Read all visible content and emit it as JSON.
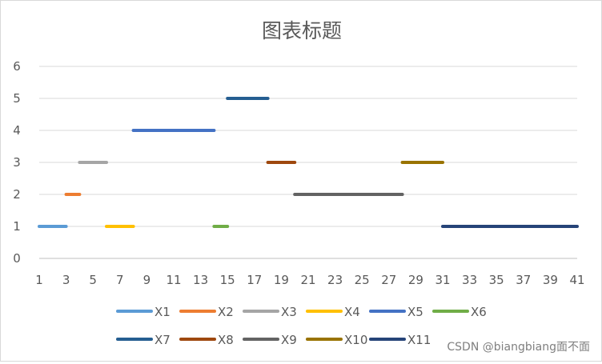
{
  "chart_data": {
    "type": "line",
    "title": "图表标题",
    "xlabel": "",
    "ylabel": "",
    "x_tick_labels": [
      "1",
      "3",
      "5",
      "7",
      "9",
      "11",
      "13",
      "15",
      "17",
      "19",
      "21",
      "23",
      "25",
      "27",
      "29",
      "31",
      "33",
      "35",
      "37",
      "39",
      "41"
    ],
    "y_tick_labels": [
      "0",
      "1",
      "2",
      "3",
      "4",
      "5",
      "6"
    ],
    "xlim": [
      1,
      41
    ],
    "ylim": [
      0,
      6
    ],
    "grid": "horizontal",
    "legend_position": "bottom",
    "series": [
      {
        "name": "X1",
        "color": "#5b9bd5",
        "x": [
          1,
          3
        ],
        "y": [
          1,
          1
        ]
      },
      {
        "name": "X2",
        "color": "#ed7d31",
        "x": [
          3,
          4
        ],
        "y": [
          2,
          2
        ]
      },
      {
        "name": "X3",
        "color": "#a5a5a5",
        "x": [
          4,
          6
        ],
        "y": [
          3,
          3
        ]
      },
      {
        "name": "X4",
        "color": "#ffc000",
        "x": [
          6,
          8
        ],
        "y": [
          1,
          1
        ]
      },
      {
        "name": "X5",
        "color": "#4472c4",
        "x": [
          8,
          14
        ],
        "y": [
          4,
          4
        ]
      },
      {
        "name": "X6",
        "color": "#70ad47",
        "x": [
          14,
          15
        ],
        "y": [
          1,
          1
        ]
      },
      {
        "name": "X7",
        "color": "#255e91",
        "x": [
          15,
          18
        ],
        "y": [
          5,
          5
        ]
      },
      {
        "name": "X8",
        "color": "#9e480e",
        "x": [
          18,
          20
        ],
        "y": [
          3,
          3
        ]
      },
      {
        "name": "X9",
        "color": "#636363",
        "x": [
          20,
          28
        ],
        "y": [
          2,
          2
        ]
      },
      {
        "name": "X10",
        "color": "#997300",
        "x": [
          28,
          31
        ],
        "y": [
          3,
          3
        ]
      },
      {
        "name": "X11",
        "color": "#264478",
        "x": [
          31,
          41
        ],
        "y": [
          1,
          1
        ]
      }
    ]
  },
  "watermark": "CSDN @biangbiang面不面"
}
